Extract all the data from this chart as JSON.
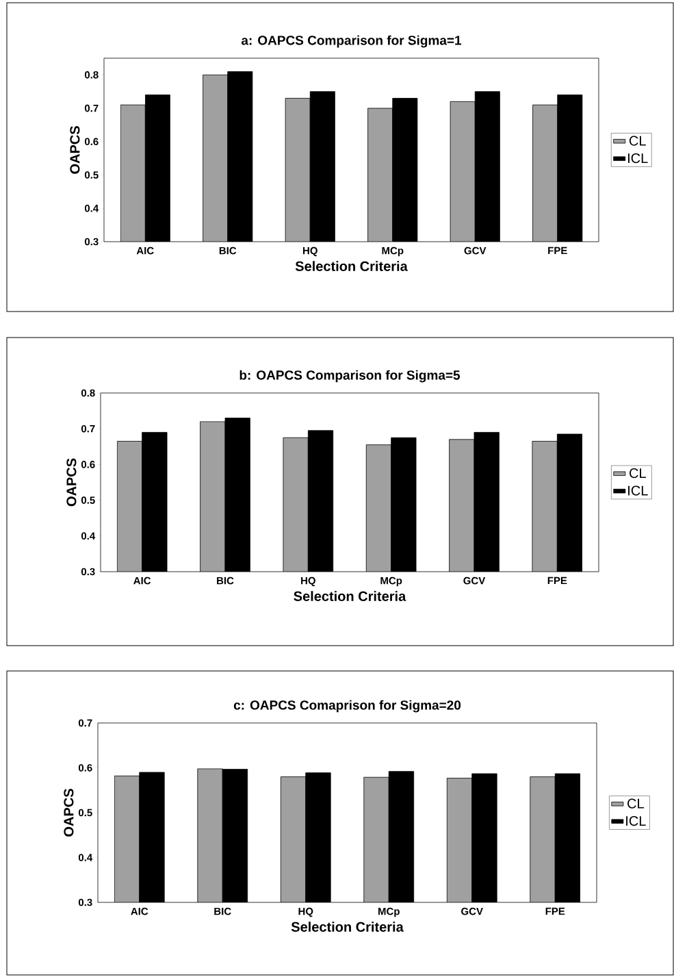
{
  "chart_data": [
    {
      "type": "bar",
      "title": "a: OAPCS Comparison for Sigma=1",
      "xlabel": "Selection Criteria",
      "ylabel": "OAPCS",
      "categories": [
        "AIC",
        "BIC",
        "HQ",
        "MCp",
        "GCV",
        "FPE"
      ],
      "series": [
        {
          "name": "CL",
          "color": "#a0a0a0",
          "values": [
            0.71,
            0.8,
            0.73,
            0.7,
            0.72,
            0.71
          ]
        },
        {
          "name": "ICL",
          "color": "#000000",
          "values": [
            0.74,
            0.81,
            0.75,
            0.73,
            0.75,
            0.74
          ]
        }
      ],
      "ylim": [
        0.3,
        0.85
      ],
      "yticks": [
        0.3,
        0.4,
        0.5,
        0.6,
        0.7,
        0.8
      ],
      "legend": "right"
    },
    {
      "type": "bar",
      "title": "b: OAPCS Comparison for Sigma=5",
      "xlabel": "Selection Criteria",
      "ylabel": "OAPCS",
      "categories": [
        "AIC",
        "BIC",
        "HQ",
        "MCp",
        "GCV",
        "FPE"
      ],
      "series": [
        {
          "name": "CL",
          "color": "#a0a0a0",
          "values": [
            0.665,
            0.72,
            0.675,
            0.655,
            0.67,
            0.665
          ]
        },
        {
          "name": "ICL",
          "color": "#000000",
          "values": [
            0.69,
            0.73,
            0.695,
            0.675,
            0.69,
            0.685
          ]
        }
      ],
      "ylim": [
        0.3,
        0.8
      ],
      "yticks": [
        0.3,
        0.4,
        0.5,
        0.6,
        0.7,
        0.8
      ],
      "legend": "right"
    },
    {
      "type": "bar",
      "title": "c: OAPCS Comaprison for Sigma=20",
      "xlabel": "Selection Criteria",
      "ylabel": "OAPCS",
      "categories": [
        "AIC",
        "BIC",
        "HQ",
        "MCp",
        "GCV",
        "FPE"
      ],
      "series": [
        {
          "name": "CL",
          "color": "#a0a0a0",
          "values": [
            0.582,
            0.598,
            0.58,
            0.579,
            0.577,
            0.58
          ]
        },
        {
          "name": "ICL",
          "color": "#000000",
          "values": [
            0.59,
            0.597,
            0.589,
            0.592,
            0.587,
            0.587
          ]
        }
      ],
      "ylim": [
        0.3,
        0.7
      ],
      "yticks": [
        0.3,
        0.4,
        0.5,
        0.6,
        0.7
      ],
      "legend": "right"
    }
  ]
}
